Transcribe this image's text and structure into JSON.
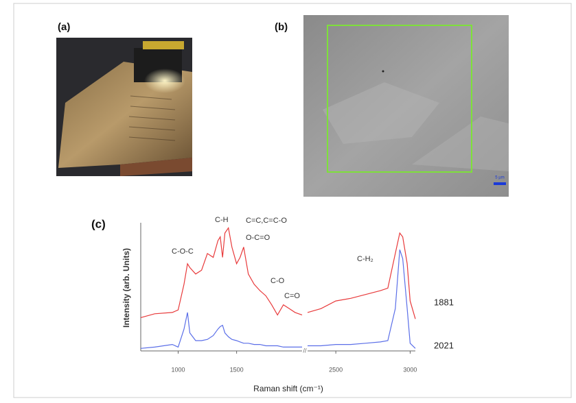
{
  "panels": [
    {
      "label": "(a)"
    },
    {
      "label": "(b)",
      "scale_bar": "5 µm"
    },
    {
      "label": "(c)"
    }
  ],
  "chart_data": {
    "type": "line",
    "x_label": "Raman shift (cm⁻¹)",
    "y_label": "Intensity (arb. Units)",
    "xlim": [
      680,
      3035
    ],
    "xbreak": [
      2060,
      2310
    ],
    "xticks": [
      1000,
      1500,
      2500,
      3000
    ],
    "ylim": [
      0,
      100
    ],
    "annotations": [
      "C-O-C",
      "C-H",
      "C=C,C=C-O",
      "O-C=O",
      "C-O",
      "C=O",
      "C-H₂"
    ],
    "x": [
      680,
      800,
      950,
      1000,
      1050,
      1080,
      1100,
      1150,
      1200,
      1250,
      1300,
      1340,
      1360,
      1380,
      1400,
      1430,
      1460,
      1500,
      1530,
      1560,
      1600,
      1650,
      1700,
      1750,
      1800,
      1850,
      1900,
      1950,
      2000,
      2060,
      2200,
      2310,
      2400,
      2500,
      2600,
      2700,
      2800,
      2850,
      2900,
      2930,
      2950,
      2980,
      3000,
      3035
    ],
    "series": [
      {
        "name": "1881",
        "color": "#e8393a",
        "values": [
          26,
          29,
          30,
          32,
          52,
          68,
          65,
          60,
          63,
          76,
          73,
          86,
          89,
          73,
          92,
          96,
          81,
          68,
          73,
          81,
          60,
          52,
          47,
          43,
          36,
          28,
          36,
          33,
          30,
          28,
          null,
          30,
          33,
          39,
          41,
          44,
          47,
          49,
          76,
          92,
          89,
          68,
          39,
          25
        ]
      },
      {
        "name": "2021",
        "color": "#5a6ee8",
        "values": [
          2,
          3,
          5,
          3,
          17,
          30,
          14,
          8,
          8,
          9,
          12,
          17,
          19,
          20,
          14,
          11,
          9,
          8,
          7,
          6,
          6,
          5,
          5,
          4,
          4,
          4,
          3,
          3,
          3,
          3,
          null,
          4,
          4,
          5,
          5,
          6,
          7,
          8,
          33,
          79,
          72,
          33,
          6,
          2
        ]
      }
    ]
  }
}
